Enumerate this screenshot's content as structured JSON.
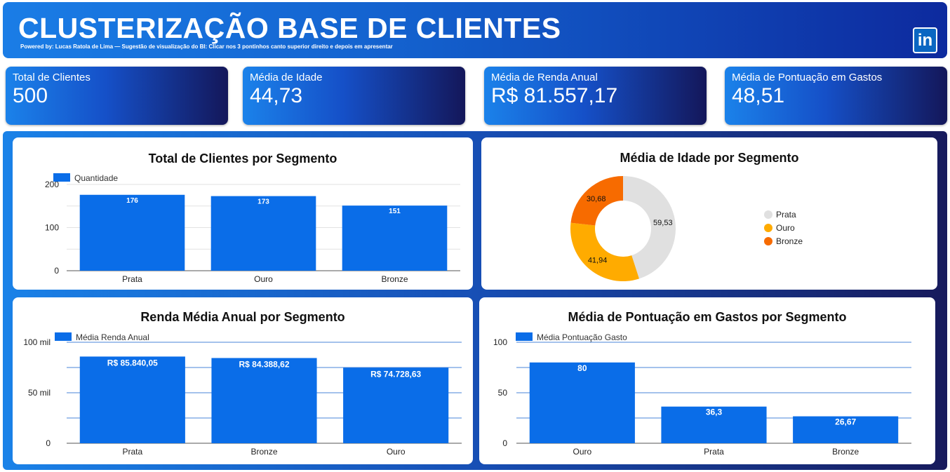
{
  "header": {
    "title": "CLUSTERIZAÇÃO BASE DE CLIENTES",
    "subtitle": "Powered by: Lucas Ratola de Lima — Sugestão de visualização do BI: Clicar nos 3 pontinhos canto superior direito e depois em apresentar",
    "linkedin_label": "in"
  },
  "kpis": [
    {
      "label": "Total de Clientes",
      "value": "500"
    },
    {
      "label": "Média de Idade",
      "value": "44,73"
    },
    {
      "label": "Média de Renda Anual",
      "value": "R$ 81.557,17"
    },
    {
      "label": "Média de Pontuação em Gastos",
      "value": "48,51"
    }
  ],
  "colors": {
    "bar": "#0a6de8",
    "prata": "#e0e0e0",
    "ouro": "#ffab00",
    "bronze": "#f76b00"
  },
  "chart_data": [
    {
      "type": "bar",
      "title": "Total de Clientes por Segmento",
      "categories": [
        "Prata",
        "Ouro",
        "Bronze"
      ],
      "series": [
        {
          "name": "Quantidade",
          "values": [
            176,
            173,
            151
          ]
        }
      ],
      "data_labels": [
        "176",
        "173",
        "151"
      ],
      "ylim": [
        0,
        200
      ],
      "yticks": [
        "0",
        "100",
        "200"
      ],
      "legend": "top-left",
      "grid": true
    },
    {
      "type": "pie",
      "title": "Média de Idade por Segmento",
      "categories": [
        "Prata",
        "Ouro",
        "Bronze"
      ],
      "values": [
        59.53,
        41.94,
        30.68
      ],
      "data_labels": [
        "59,53",
        "41,94",
        "30,68"
      ],
      "legend": "right"
    },
    {
      "type": "bar",
      "title": "Renda Média Anual por Segmento",
      "categories": [
        "Prata",
        "Bronze",
        "Ouro"
      ],
      "series": [
        {
          "name": "Média Renda Anual",
          "values": [
            85840.05,
            84388.62,
            74728.63
          ]
        }
      ],
      "data_labels": [
        "R$ 85.840,05",
        "R$ 84.388,62",
        "R$ 74.728,63"
      ],
      "ylim": [
        0,
        100000
      ],
      "yticks": [
        "0",
        "50 mil",
        "100 mil"
      ],
      "legend": "top-left",
      "grid": true
    },
    {
      "type": "bar",
      "title": "Média de Pontuação em Gastos por Segmento",
      "categories": [
        "Ouro",
        "Prata",
        "Bronze"
      ],
      "series": [
        {
          "name": "Média Pontuação Gasto",
          "values": [
            80,
            36.3,
            26.67
          ]
        }
      ],
      "data_labels": [
        "80",
        "36,3",
        "26,67"
      ],
      "ylim": [
        0,
        100
      ],
      "yticks": [
        "0",
        "50",
        "100"
      ],
      "legend": "top-left",
      "grid": true
    }
  ]
}
